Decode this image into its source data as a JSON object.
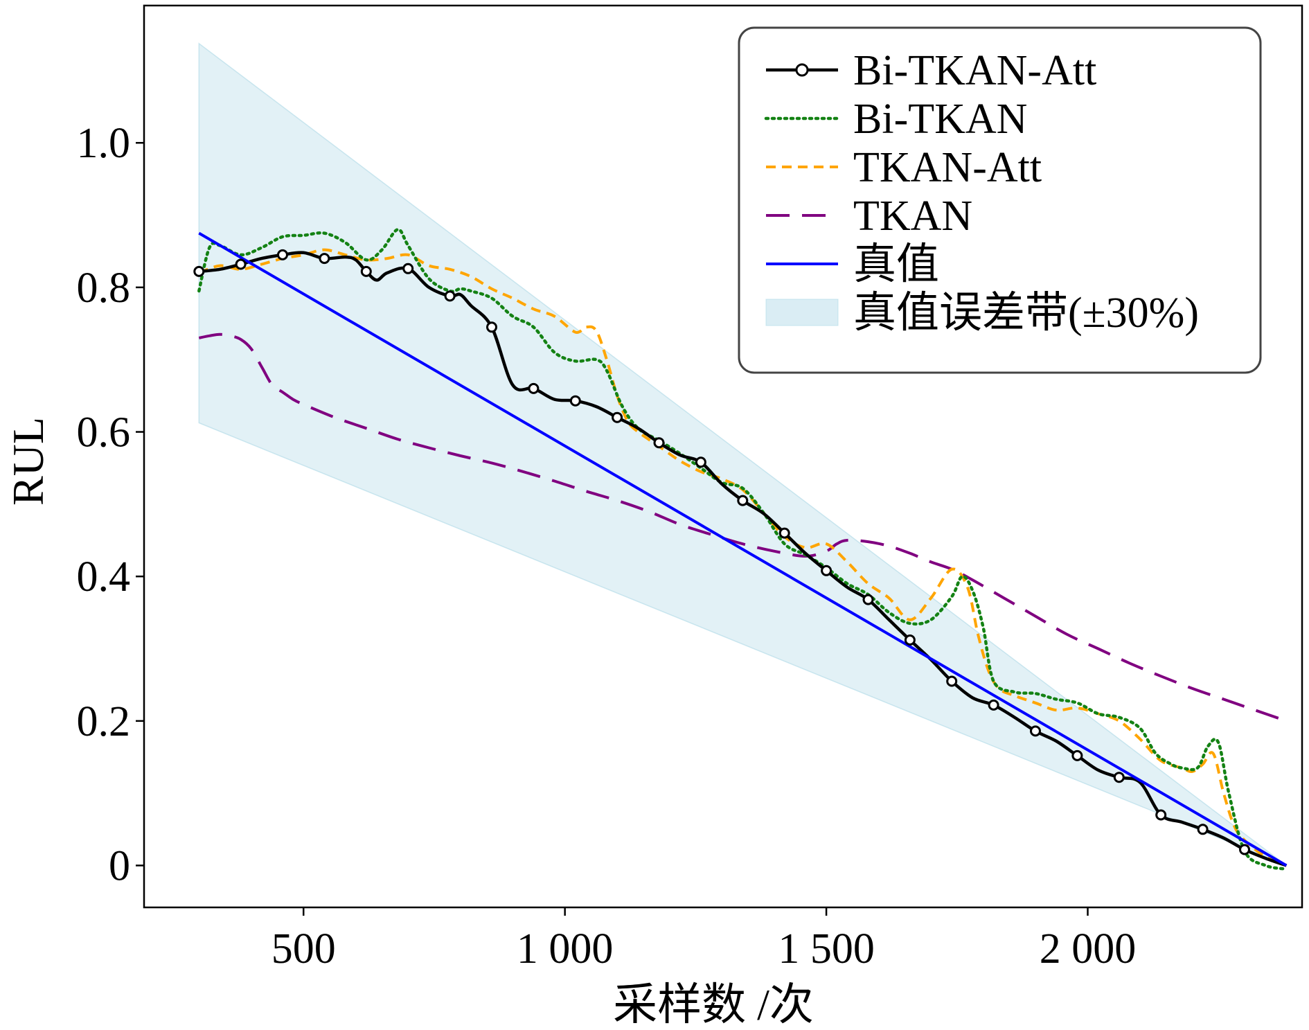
{
  "chart_data": {
    "type": "line",
    "xlabel": "采样数 /次",
    "ylabel": "RUL",
    "xlim": [
      195,
      2410
    ],
    "ylim": [
      -0.058,
      1.19
    ],
    "x_ticks": [
      {
        "value": 500,
        "label": "500"
      },
      {
        "value": 1000,
        "label": "1 000"
      },
      {
        "value": 1500,
        "label": "1 500"
      },
      {
        "value": 2000,
        "label": "2 000"
      }
    ],
    "y_ticks": [
      {
        "value": 0,
        "label": "0"
      },
      {
        "value": 0.2,
        "label": "0.2"
      },
      {
        "value": 0.4,
        "label": "0.4"
      },
      {
        "value": 0.6,
        "label": "0.6"
      },
      {
        "value": 0.8,
        "label": "0.8"
      },
      {
        "value": 1.0,
        "label": "1.0"
      }
    ],
    "grid": false,
    "legend_position": "top-right",
    "series": [
      {
        "name": "Bi-TKAN-Att",
        "color": "#000000",
        "style": "solid-circle-markers",
        "x": [
          300,
          340,
          380,
          420,
          460,
          500,
          540,
          580,
          600,
          620,
          640,
          660,
          700,
          740,
          780,
          800,
          820,
          860,
          900,
          940,
          980,
          1020,
          1060,
          1100,
          1140,
          1180,
          1220,
          1260,
          1300,
          1340,
          1380,
          1420,
          1460,
          1500,
          1540,
          1580,
          1620,
          1660,
          1700,
          1740,
          1780,
          1820,
          1860,
          1900,
          1940,
          1980,
          2020,
          2060,
          2100,
          2140,
          2180,
          2220,
          2260,
          2300,
          2340,
          2380
        ],
        "y": [
          0.822,
          0.825,
          0.832,
          0.84,
          0.845,
          0.848,
          0.84,
          0.842,
          0.838,
          0.822,
          0.81,
          0.82,
          0.826,
          0.8,
          0.788,
          0.79,
          0.775,
          0.745,
          0.665,
          0.66,
          0.645,
          0.643,
          0.635,
          0.62,
          0.605,
          0.585,
          0.568,
          0.558,
          0.528,
          0.505,
          0.487,
          0.46,
          0.432,
          0.408,
          0.385,
          0.368,
          0.34,
          0.312,
          0.285,
          0.255,
          0.232,
          0.222,
          0.205,
          0.186,
          0.172,
          0.152,
          0.132,
          0.122,
          0.115,
          0.07,
          0.06,
          0.05,
          0.038,
          0.022,
          0.01,
          0.0
        ],
        "markers_x": [
          300,
          380,
          460,
          540,
          620,
          700,
          780,
          860,
          940,
          1020,
          1100,
          1180,
          1260,
          1340,
          1420,
          1500,
          1580,
          1660,
          1740,
          1820,
          1900,
          1980,
          2060,
          2140,
          2220,
          2300
        ]
      },
      {
        "name": "Bi-TKAN",
        "color": "#148214",
        "style": "dotted",
        "x": [
          300,
          320,
          340,
          380,
          420,
          460,
          500,
          540,
          580,
          620,
          650,
          680,
          700,
          740,
          780,
          800,
          820,
          860,
          900,
          940,
          980,
          1020,
          1060,
          1080,
          1110,
          1140,
          1180,
          1220,
          1260,
          1300,
          1340,
          1380,
          1420,
          1460,
          1500,
          1540,
          1580,
          1620,
          1660,
          1700,
          1740,
          1760,
          1780,
          1800,
          1820,
          1860,
          1900,
          1940,
          1980,
          2020,
          2060,
          2100,
          2130,
          2160,
          2180,
          2210,
          2230,
          2250,
          2270,
          2300,
          2340,
          2380
        ],
        "y": [
          0.795,
          0.855,
          0.858,
          0.845,
          0.855,
          0.87,
          0.872,
          0.875,
          0.862,
          0.838,
          0.852,
          0.88,
          0.858,
          0.812,
          0.795,
          0.798,
          0.795,
          0.785,
          0.76,
          0.745,
          0.71,
          0.698,
          0.7,
          0.685,
          0.635,
          0.605,
          0.588,
          0.57,
          0.55,
          0.53,
          0.522,
          0.488,
          0.445,
          0.43,
          0.412,
          0.39,
          0.375,
          0.35,
          0.335,
          0.34,
          0.372,
          0.4,
          0.38,
          0.33,
          0.255,
          0.24,
          0.238,
          0.23,
          0.225,
          0.21,
          0.205,
          0.19,
          0.155,
          0.14,
          0.135,
          0.135,
          0.165,
          0.17,
          0.1,
          0.02,
          0.0,
          -0.005
        ]
      },
      {
        "name": "TKAN-Att",
        "color": "#FFA500",
        "style": "dashed",
        "x": [
          300,
          340,
          380,
          420,
          460,
          500,
          540,
          580,
          620,
          660,
          700,
          740,
          780,
          820,
          860,
          900,
          940,
          980,
          1020,
          1040,
          1060,
          1080,
          1100,
          1120,
          1140,
          1180,
          1220,
          1260,
          1300,
          1340,
          1380,
          1420,
          1460,
          1500,
          1540,
          1580,
          1620,
          1660,
          1700,
          1740,
          1770,
          1790,
          1810,
          1830,
          1860,
          1900,
          1940,
          1980,
          2020,
          2060,
          2100,
          2140,
          2180,
          2200,
          2220,
          2240,
          2260,
          2280,
          2300,
          2340,
          2380
        ],
        "y": [
          0.82,
          0.83,
          0.825,
          0.832,
          0.84,
          0.845,
          0.852,
          0.845,
          0.838,
          0.84,
          0.845,
          0.83,
          0.825,
          0.815,
          0.798,
          0.785,
          0.77,
          0.76,
          0.738,
          0.745,
          0.74,
          0.7,
          0.65,
          0.615,
          0.6,
          0.58,
          0.56,
          0.545,
          0.535,
          0.52,
          0.488,
          0.455,
          0.44,
          0.445,
          0.42,
          0.39,
          0.37,
          0.34,
          0.37,
          0.41,
          0.385,
          0.32,
          0.27,
          0.245,
          0.235,
          0.225,
          0.215,
          0.218,
          0.21,
          0.2,
          0.175,
          0.145,
          0.135,
          0.13,
          0.14,
          0.155,
          0.1,
          0.055,
          0.035,
          0.012,
          0.0
        ]
      },
      {
        "name": "TKAN",
        "color": "#800080",
        "style": "long-dashed",
        "x": [
          300,
          320,
          340,
          360,
          380,
          400,
          420,
          440,
          460,
          480,
          500,
          560,
          620,
          680,
          740,
          800,
          860,
          920,
          980,
          1040,
          1100,
          1160,
          1220,
          1280,
          1340,
          1400,
          1460,
          1500,
          1520,
          1540,
          1580,
          1620,
          1660,
          1700,
          1740,
          1780,
          1840,
          1900,
          1960,
          2020,
          2080,
          2140,
          2200,
          2260,
          2320,
          2380
        ],
        "y": [
          0.73,
          0.733,
          0.735,
          0.733,
          0.728,
          0.715,
          0.69,
          0.665,
          0.655,
          0.645,
          0.638,
          0.62,
          0.605,
          0.59,
          0.578,
          0.567,
          0.557,
          0.545,
          0.532,
          0.518,
          0.505,
          0.49,
          0.472,
          0.458,
          0.445,
          0.435,
          0.428,
          0.435,
          0.445,
          0.45,
          0.448,
          0.442,
          0.432,
          0.42,
          0.41,
          0.395,
          0.37,
          0.345,
          0.32,
          0.3,
          0.28,
          0.262,
          0.245,
          0.23,
          0.215,
          0.2
        ]
      },
      {
        "name": "真值",
        "color": "#0000FF",
        "style": "solid",
        "x": [
          300,
          2380
        ],
        "y": [
          0.875,
          0.0
        ]
      }
    ],
    "band": {
      "name": "真值误差带(±30%)",
      "color": "#ADD8E6",
      "opacity": 0.35,
      "x": [
        300,
        2380
      ],
      "upper": [
        1.1375,
        0.0
      ],
      "lower": [
        0.6125,
        0.0
      ]
    }
  }
}
